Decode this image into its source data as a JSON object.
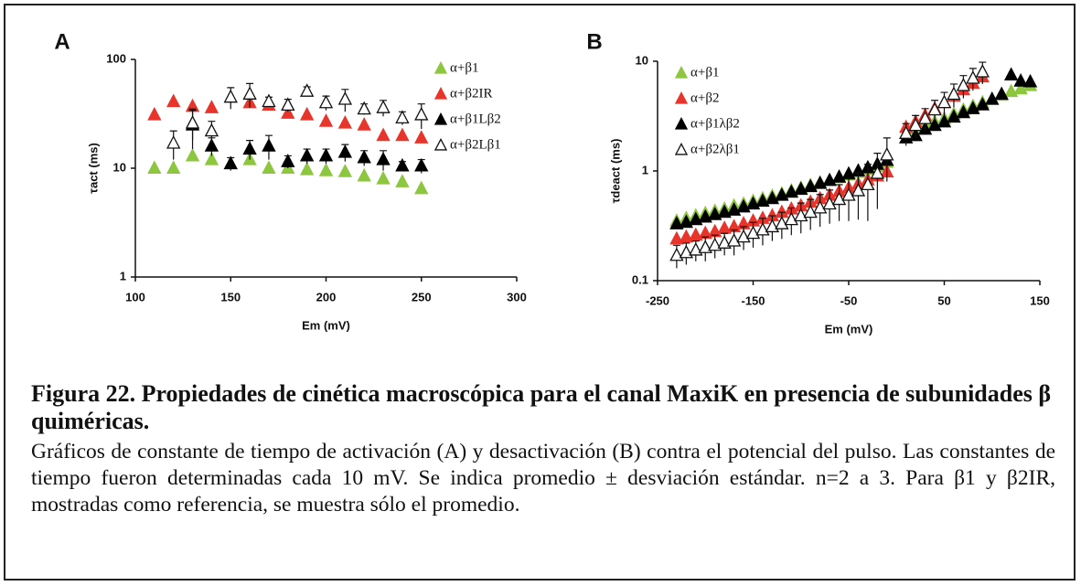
{
  "chart_data": [
    {
      "type": "scatter",
      "panel": "A",
      "xlabel": "Em (mV)",
      "ylabel": "τact (ms)",
      "yscale": "log",
      "xlim": [
        100,
        300
      ],
      "xticks": [
        100,
        150,
        200,
        250,
        300
      ],
      "ylim": [
        1,
        100
      ],
      "yticks": [
        1,
        10,
        100
      ],
      "series": [
        {
          "name": "α+β1",
          "color": "#8dc63f",
          "marker": "filled",
          "x": [
            110,
            120,
            130,
            140,
            150,
            160,
            170,
            180,
            190,
            200,
            210,
            220,
            230,
            240,
            250
          ],
          "values": [
            10,
            10,
            13,
            12,
            11,
            12,
            10,
            10,
            9.7,
            9.5,
            9.3,
            8.5,
            8,
            7.5,
            6.5
          ]
        },
        {
          "name": "α+β2IR",
          "color": "#e8352b",
          "marker": "filled",
          "x": [
            110,
            120,
            130,
            140,
            160,
            170,
            180,
            190,
            200,
            210,
            220,
            230,
            240,
            250
          ],
          "values": [
            31,
            41,
            37,
            36,
            40,
            38,
            32,
            31,
            27,
            26,
            25,
            20,
            20,
            19
          ]
        },
        {
          "name": "α+β1Lβ2",
          "color": "#000000",
          "marker": "filled",
          "x": [
            130,
            140,
            150,
            160,
            170,
            180,
            190,
            200,
            210,
            220,
            230,
            240,
            250
          ],
          "values": [
            25,
            16,
            11,
            15,
            16,
            11.5,
            13,
            13,
            14,
            12.5,
            12,
            10.5,
            10.5
          ],
          "errors": [
            10,
            3,
            1.5,
            3,
            4,
            1.5,
            2,
            2,
            2.5,
            2,
            2.5,
            1,
            1.5
          ]
        },
        {
          "name": "α+β2Lβ1",
          "color": "#000000",
          "marker": "open",
          "x": [
            120,
            130,
            140,
            150,
            160,
            170,
            180,
            190,
            200,
            210,
            220,
            230,
            240,
            250
          ],
          "values": [
            17,
            26,
            22,
            45,
            48,
            41,
            38,
            51,
            40,
            43,
            35,
            36,
            29,
            31
          ],
          "errors": [
            5,
            8,
            5,
            10,
            12,
            4,
            5,
            5,
            6,
            10,
            4,
            6,
            4,
            8
          ]
        }
      ]
    },
    {
      "type": "scatter",
      "panel": "B",
      "xlabel": "Em (mV)",
      "ylabel": "τdeact (ms)",
      "yscale": "log",
      "xlim": [
        -250,
        150
      ],
      "xticks": [
        -250,
        -150,
        -50,
        50,
        150
      ],
      "ylim": [
        0.1,
        10
      ],
      "yticks": [
        0.1,
        1,
        10
      ],
      "series": [
        {
          "name": "α+β1",
          "color": "#8dc63f",
          "marker": "filled",
          "x": [
            -230,
            -220,
            -210,
            -200,
            -190,
            -180,
            -170,
            -160,
            -150,
            -140,
            -130,
            -120,
            -110,
            -100,
            -90,
            -80,
            -70,
            -60,
            -50,
            -40,
            -30,
            -20,
            -10,
            10,
            20,
            30,
            40,
            50,
            60,
            70,
            80,
            90,
            100,
            110,
            120,
            130,
            140
          ],
          "values": [
            0.35,
            0.37,
            0.39,
            0.41,
            0.43,
            0.45,
            0.48,
            0.5,
            0.53,
            0.56,
            0.59,
            0.62,
            0.66,
            0.7,
            0.74,
            0.78,
            0.82,
            0.87,
            0.92,
            0.97,
            1.03,
            1.1,
            1.2,
            2.2,
            2.4,
            2.6,
            2.8,
            3.0,
            3.3,
            3.6,
            3.9,
            4.2,
            4.5,
            4.9,
            5.3,
            5.6,
            6.0
          ]
        },
        {
          "name": "α+β2",
          "color": "#e8352b",
          "marker": "filled",
          "x": [
            -230,
            -220,
            -210,
            -200,
            -190,
            -180,
            -170,
            -160,
            -150,
            -140,
            -130,
            -120,
            -110,
            -100,
            -90,
            -80,
            -70,
            -60,
            -50,
            -40,
            -30,
            -20,
            -10,
            10,
            20,
            30,
            40,
            50,
            60,
            70,
            80,
            90
          ],
          "values": [
            0.24,
            0.25,
            0.26,
            0.27,
            0.28,
            0.3,
            0.31,
            0.33,
            0.35,
            0.37,
            0.39,
            0.42,
            0.45,
            0.48,
            0.52,
            0.56,
            0.6,
            0.65,
            0.7,
            0.76,
            0.83,
            0.9,
            0.98,
            2.5,
            2.8,
            3.2,
            3.7,
            4.2,
            4.8,
            5.5,
            6.3,
            7.2
          ]
        },
        {
          "name": "α+β1λβ2",
          "color": "#000000",
          "marker": "filled",
          "x": [
            -230,
            -220,
            -210,
            -200,
            -190,
            -180,
            -170,
            -160,
            -150,
            -140,
            -130,
            -120,
            -110,
            -100,
            -90,
            -80,
            -70,
            -60,
            -50,
            -40,
            -30,
            -20,
            -10,
            10,
            20,
            30,
            40,
            50,
            60,
            70,
            80,
            90,
            100,
            110,
            120,
            130,
            140
          ],
          "values": [
            0.33,
            0.34,
            0.36,
            0.38,
            0.4,
            0.42,
            0.44,
            0.47,
            0.5,
            0.53,
            0.56,
            0.6,
            0.64,
            0.68,
            0.72,
            0.77,
            0.82,
            0.88,
            0.94,
            1.0,
            1.07,
            1.15,
            1.25,
            2.0,
            2.1,
            2.4,
            2.6,
            2.8,
            3.1,
            3.4,
            3.7,
            4.0,
            4.5,
            5.0,
            7.5,
            6.6,
            6.5
          ]
        },
        {
          "name": "α+β2λβ1",
          "color": "#000000",
          "marker": "open",
          "x": [
            -230,
            -220,
            -210,
            -200,
            -190,
            -180,
            -170,
            -160,
            -150,
            -140,
            -130,
            -120,
            -110,
            -100,
            -90,
            -80,
            -70,
            -60,
            -50,
            -40,
            -30,
            -20,
            -10,
            10,
            20,
            30,
            40,
            50,
            60,
            70,
            80,
            90
          ],
          "values": [
            0.17,
            0.18,
            0.19,
            0.2,
            0.21,
            0.22,
            0.23,
            0.25,
            0.27,
            0.29,
            0.31,
            0.33,
            0.36,
            0.39,
            0.42,
            0.46,
            0.5,
            0.55,
            0.6,
            0.66,
            0.75,
            0.95,
            1.4,
            2.2,
            2.6,
            3.0,
            3.6,
            4.2,
            5.0,
            6.0,
            7.0,
            8.0
          ],
          "errors": [
            0.04,
            0.04,
            0.04,
            0.05,
            0.05,
            0.05,
            0.06,
            0.06,
            0.07,
            0.08,
            0.08,
            0.09,
            0.1,
            0.12,
            0.13,
            0.15,
            0.17,
            0.2,
            0.25,
            0.3,
            0.4,
            0.5,
            0.6,
            0.5,
            0.6,
            0.7,
            0.8,
            1,
            1.2,
            1.4,
            1.6,
            1.8
          ]
        }
      ]
    }
  ],
  "caption": {
    "title": "Figura 22. Propiedades de cinética macroscópica para el canal MaxiK en presencia de subunidades β quiméricas.",
    "body": "Gráficos de constante de tiempo de activación (A) y desactivación (B) contra el potencial del pulso. Las constantes de tiempo fueron determinadas cada 10 mV. Se indica promedio ± desviación estándar. n=2 a 3. Para β1 y β2IR, mostradas como referencia, se muestra sólo el promedio."
  }
}
